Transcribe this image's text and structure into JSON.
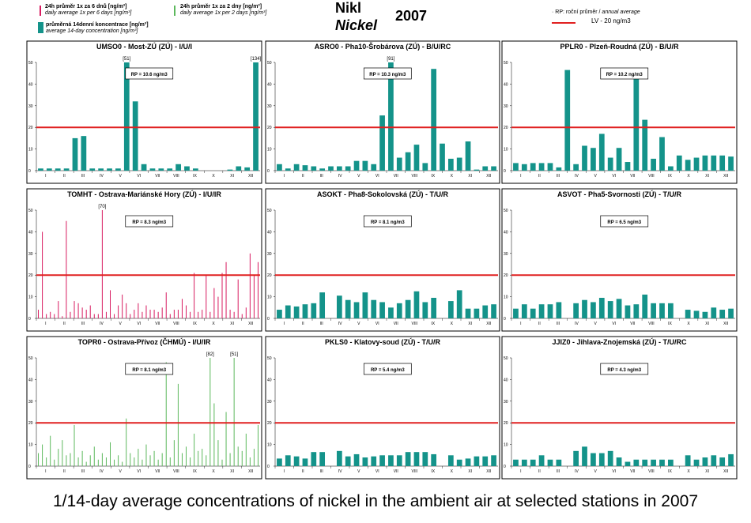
{
  "legend": {
    "pink_label_cz": "24h průměr 1x za 6 dnů [ng/m³]",
    "pink_label_en": "daily average 1x per 6 days [ng/m³]",
    "green_label_cz": "24h průměr 1x za 2 dny [ng/m³]",
    "green_label_en": "daily average 1x per 2 days [ng/m³]",
    "teal_label_cz": "průměrná 14denní koncentrace [ng/m³]",
    "teal_label_en": "average 14-day concentration [ng/m³]",
    "rp_label_cz": "RP: roční průměr /",
    "rp_label_en": "annual average",
    "lv_label": "LV    - 20 ng/m3",
    "colors": {
      "pink": "#d81b60",
      "green": "#5cb85c",
      "teal": "#14938a",
      "limit": "#e02020"
    }
  },
  "title": {
    "cz": "Nikl",
    "en": "Nickel",
    "year": "2007"
  },
  "caption": "1/14-day average concentrations of nickel in the ambient air at selected stations in 2007",
  "months": [
    "I",
    "II",
    "III",
    "IV",
    "V",
    "VI",
    "VII",
    "VIII",
    "IX",
    "X",
    "XI",
    "XII"
  ],
  "y_ticks": [
    "0",
    "10",
    "20",
    "30",
    "40",
    "50"
  ],
  "chart_data": [
    {
      "type": "bar",
      "style": "teal",
      "title": "UMSO0 - Most-ZÚ (ZÚ) - I/U/I",
      "rp": "RP = 10.6 ng/m3",
      "ylim": [
        0,
        50
      ],
      "limit": 20,
      "values": [
        1,
        1,
        1,
        1,
        15,
        16,
        1,
        1,
        1,
        1,
        50,
        32,
        3,
        1,
        1,
        1,
        3,
        2,
        1,
        0,
        0,
        0,
        0.5,
        2,
        1.5,
        50
      ],
      "notes": [
        {
          "i": 10,
          "text": "[51]"
        },
        {
          "i": 25,
          "text": "[134]"
        }
      ]
    },
    {
      "type": "bar",
      "style": "teal",
      "title": "ASRO0 - Pha10-Šrobárova (ZÚ) - B/U/RC",
      "rp": "RP = 10.3 ng/m3",
      "ylim": [
        0,
        50
      ],
      "limit": 20,
      "values": [
        3,
        1,
        3,
        2.5,
        2,
        1,
        2,
        2,
        2,
        4.5,
        4.5,
        3,
        25.5,
        50,
        6,
        8.5,
        12,
        3.5,
        47,
        12.5,
        5.5,
        6,
        13.5,
        0.5,
        2,
        2
      ],
      "notes": [
        {
          "i": 13,
          "text": "[91]"
        }
      ]
    },
    {
      "type": "bar",
      "style": "teal",
      "title": "PPLR0 - Plzeň-Roudná (ZÚ) - B/U/R",
      "rp": "RP = 10.2 ng/m3",
      "ylim": [
        0,
        50
      ],
      "limit": 20,
      "values": [
        3.5,
        3,
        3.5,
        3.5,
        3.5,
        1.5,
        46.5,
        3,
        11.5,
        10.5,
        17,
        6,
        10.5,
        4,
        45,
        23.5,
        5.5,
        15.5,
        2,
        7,
        5,
        6,
        7,
        7,
        7,
        6.5
      ],
      "notes": []
    },
    {
      "type": "spike",
      "style": "pink",
      "title": "TOMHT - Ostrava-Mariánské Hory (ZÚ) - I/U/IR",
      "rp": "RP = 8.3 ng/m3",
      "ylim": [
        0,
        50
      ],
      "limit": 20,
      "values": [
        4,
        40,
        2,
        3,
        2,
        8,
        1,
        45,
        3,
        8,
        7,
        5,
        4,
        6,
        2,
        2,
        50,
        3,
        13,
        2,
        6,
        11,
        7,
        2,
        4,
        7,
        3,
        6,
        4,
        4,
        3,
        5,
        12,
        2,
        4,
        4,
        9,
        6,
        3,
        21,
        3,
        4,
        20,
        3,
        14,
        10,
        21,
        26,
        4,
        3,
        18,
        2,
        5,
        30,
        20,
        26
      ],
      "notes": [
        {
          "i": 16,
          "text": "[70]"
        }
      ]
    },
    {
      "type": "bar",
      "style": "teal",
      "title": "ASOKT - Pha8-Sokolovská (ZÚ) - T/U/R",
      "rp": "RP = 8.1 ng/m3",
      "ylim": [
        0,
        50
      ],
      "limit": 20,
      "values": [
        4,
        6,
        5.5,
        6.5,
        7,
        12,
        0,
        10.5,
        8.5,
        7.5,
        12,
        8.5,
        7.5,
        5,
        7,
        8.5,
        12.5,
        7.5,
        9.5,
        0,
        8,
        13,
        4.5,
        4.5,
        6,
        6.5
      ],
      "notes": []
    },
    {
      "type": "bar",
      "style": "teal",
      "title": "ASVOT - Pha5-Svornosti (ZÚ) - T/U/R",
      "rp": "RP = 6.5 ng/m3",
      "ylim": [
        0,
        50
      ],
      "limit": 20,
      "values": [
        4.5,
        6.5,
        4.5,
        6.5,
        6.5,
        7.5,
        0,
        7,
        8.5,
        7.5,
        9.5,
        8,
        9,
        6,
        6.5,
        11,
        7,
        7,
        7,
        0,
        4,
        3.5,
        3,
        5,
        4,
        4.5
      ],
      "notes": []
    },
    {
      "type": "spike",
      "style": "green",
      "title": "TOPR0 - Ostrava-Přívoz (ČHMÚ) - I/U/IR",
      "rp": "RP = 8.1 ng/m3",
      "ylim": [
        0,
        50
      ],
      "limit": 20,
      "values": [
        6,
        10,
        4,
        14,
        3,
        8,
        12,
        5,
        6,
        19,
        4,
        7,
        2,
        5,
        9,
        3,
        6,
        4,
        11,
        3,
        5,
        2,
        22,
        6,
        4,
        8,
        3,
        10,
        5,
        7,
        3,
        6,
        48,
        4,
        12,
        38,
        6,
        9,
        4,
        15,
        7,
        8,
        5,
        50,
        29,
        12,
        3,
        25,
        6,
        50,
        9,
        7,
        15,
        4,
        8,
        19
      ],
      "notes": [
        {
          "i": 43,
          "text": "[82]"
        },
        {
          "i": 49,
          "text": "[51]"
        }
      ]
    },
    {
      "type": "bar",
      "style": "teal",
      "title": "PKLS0 - Klatovy-soud (ZÚ) - T/U/R",
      "rp": "RP = 5.4 ng/m3",
      "ylim": [
        0,
        50
      ],
      "limit": 20,
      "values": [
        3.5,
        5,
        4.5,
        3.5,
        6.5,
        6.5,
        0,
        7,
        4.5,
        5.5,
        4,
        4.5,
        5,
        5,
        5,
        6.5,
        6.5,
        6.5,
        5.5,
        0,
        5,
        3,
        3.5,
        4.5,
        4.5,
        5
      ],
      "notes": []
    },
    {
      "type": "bar",
      "style": "teal",
      "title": "JJIZ0 - Jihlava-Znojemská (ZÚ) - T/U/RC",
      "rp": "RP = 4.3 ng/m3",
      "ylim": [
        0,
        50
      ],
      "limit": 20,
      "values": [
        3,
        3,
        3,
        5,
        3,
        3,
        0,
        7,
        9,
        6,
        6,
        7,
        4,
        2,
        3,
        3,
        3,
        3,
        3,
        0,
        5,
        3,
        4,
        5,
        4,
        5.5
      ],
      "notes": []
    }
  ]
}
